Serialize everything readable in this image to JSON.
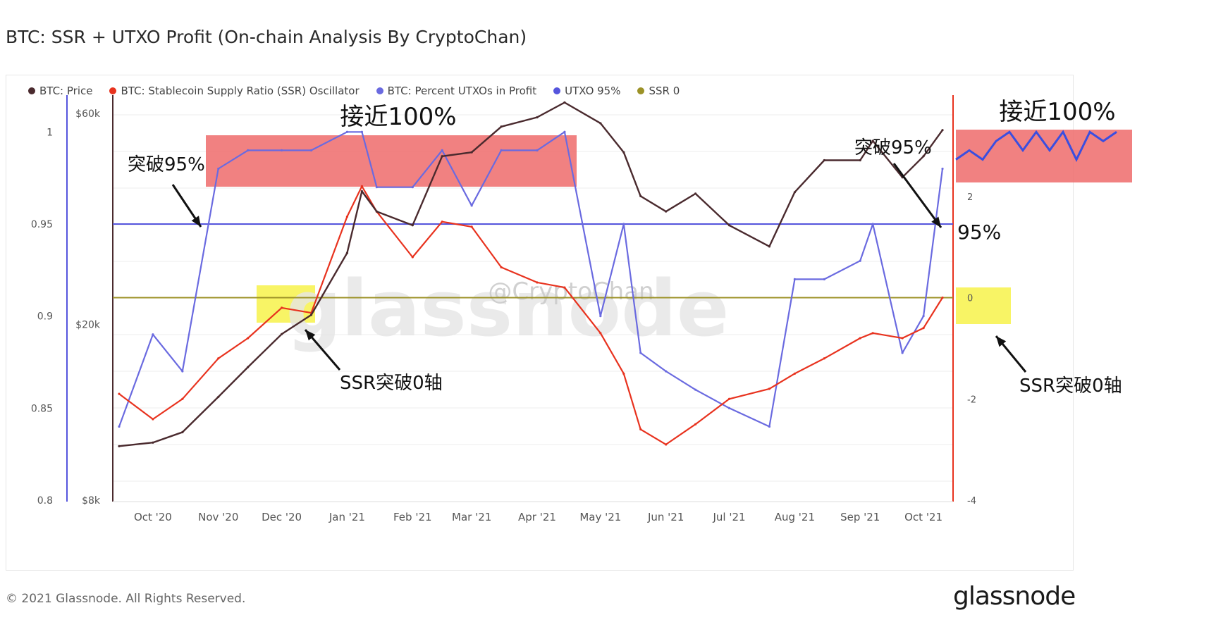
{
  "title": "BTC: SSR + UTXO Profit (On-chain Analysis By CryptoChan)",
  "legend": [
    {
      "label": "BTC: Price",
      "color": "#4a2a2e"
    },
    {
      "label": "BTC: Stablecoin Supply Ratio (SSR) Oscillator",
      "color": "#e8321e"
    },
    {
      "label": "BTC: Percent UTXOs in Profit",
      "color": "#6a6ae0"
    },
    {
      "label": "UTXO 95%",
      "color": "#5555dd"
    },
    {
      "label": "SSR 0",
      "color": "#9c9227"
    }
  ],
  "watermark": "glassnode",
  "weibo_handle": "@CryptoChan",
  "copyright": "© 2021 Glassnode. All Rights Reserved.",
  "brand": "glassnode",
  "annotations": {
    "near100_left": "接近100%",
    "near100_right": "接近100%",
    "break95_left": "突破95%",
    "break95_right": "突破95%",
    "ssr_break_left": "SSR突破0轴",
    "ssr_break_right": "SSR突破0轴",
    "pct95": "95%"
  },
  "colors": {
    "price": "#4a2a2e",
    "ssr": "#e8321e",
    "utxo": "#6a6ae0",
    "utxo95": "#5555dd",
    "ssr0": "#9c9227",
    "highlight_red": "#ee6b6b",
    "highlight_yellow": "#f7f24a"
  },
  "chart_data": {
    "type": "line",
    "x": [
      "2020-09-15",
      "2020-10-01",
      "2020-10-15",
      "2020-11-01",
      "2020-11-15",
      "2020-12-01",
      "2020-12-15",
      "2021-01-01",
      "2021-01-08",
      "2021-01-15",
      "2021-02-01",
      "2021-02-15",
      "2021-03-01",
      "2021-03-15",
      "2021-04-01",
      "2021-04-14",
      "2021-05-01",
      "2021-05-12",
      "2021-05-20",
      "2021-06-01",
      "2021-06-15",
      "2021-07-01",
      "2021-07-20",
      "2021-08-01",
      "2021-08-15",
      "2021-09-01",
      "2021-09-07",
      "2021-09-21",
      "2021-10-01",
      "2021-10-10"
    ],
    "x_ticks": [
      "Oct '20",
      "Nov '20",
      "Dec '20",
      "Jan '21",
      "Feb '21",
      "Mar '21",
      "Apr '21",
      "May '21",
      "Jun '21",
      "Jul '21",
      "Aug '21",
      "Sep '21",
      "Oct '21"
    ],
    "axes": {
      "utxo_axis": {
        "ticks": [
          "0.8",
          "0.85",
          "0.9",
          "0.95",
          "1"
        ],
        "range": [
          0.8,
          1.02
        ]
      },
      "price_axis": {
        "ticks": [
          "$8k",
          "$20k",
          "$60k"
        ],
        "scale": "log",
        "range": [
          8000,
          66000
        ]
      },
      "ssr_axis": {
        "ticks": [
          "-4",
          "-2",
          "0",
          "2"
        ],
        "range": [
          -4,
          4
        ]
      }
    },
    "series": [
      {
        "name": "BTC: Price",
        "axis": "price",
        "values": [
          10600,
          10800,
          11400,
          13700,
          16000,
          19000,
          21000,
          29000,
          40000,
          36000,
          33500,
          48000,
          49000,
          56000,
          58800,
          63500,
          57000,
          49000,
          39000,
          36000,
          39500,
          33500,
          30000,
          39800,
          47000,
          47000,
          52000,
          43000,
          48000,
          55000
        ]
      },
      {
        "name": "BTC: Stablecoin Supply Ratio (SSR) Oscillator",
        "axis": "ssr",
        "values": [
          -1.9,
          -2.4,
          -2.0,
          -1.2,
          -0.8,
          -0.2,
          -0.3,
          1.6,
          2.2,
          1.7,
          0.8,
          1.5,
          1.4,
          0.6,
          0.3,
          0.2,
          -0.7,
          -1.5,
          -2.6,
          -2.9,
          -2.5,
          -2.0,
          -1.8,
          -1.5,
          -1.2,
          -0.8,
          -0.7,
          -0.8,
          -0.6,
          0.0
        ]
      },
      {
        "name": "BTC: Percent UTXOs in Profit",
        "axis": "utxo",
        "values": [
          0.84,
          0.89,
          0.87,
          0.98,
          0.99,
          0.99,
          0.99,
          1.0,
          1.0,
          0.97,
          0.97,
          0.99,
          0.96,
          0.99,
          0.99,
          1.0,
          0.9,
          0.95,
          0.88,
          0.87,
          0.86,
          0.85,
          0.84,
          0.92,
          0.92,
          0.93,
          0.95,
          0.88,
          0.9,
          0.98
        ]
      },
      {
        "name": "UTXO 95%",
        "axis": "utxo",
        "constant": 0.95
      },
      {
        "name": "SSR 0",
        "axis": "ssr",
        "constant": 0
      }
    ],
    "grid": true,
    "legend_position": "top-left"
  }
}
